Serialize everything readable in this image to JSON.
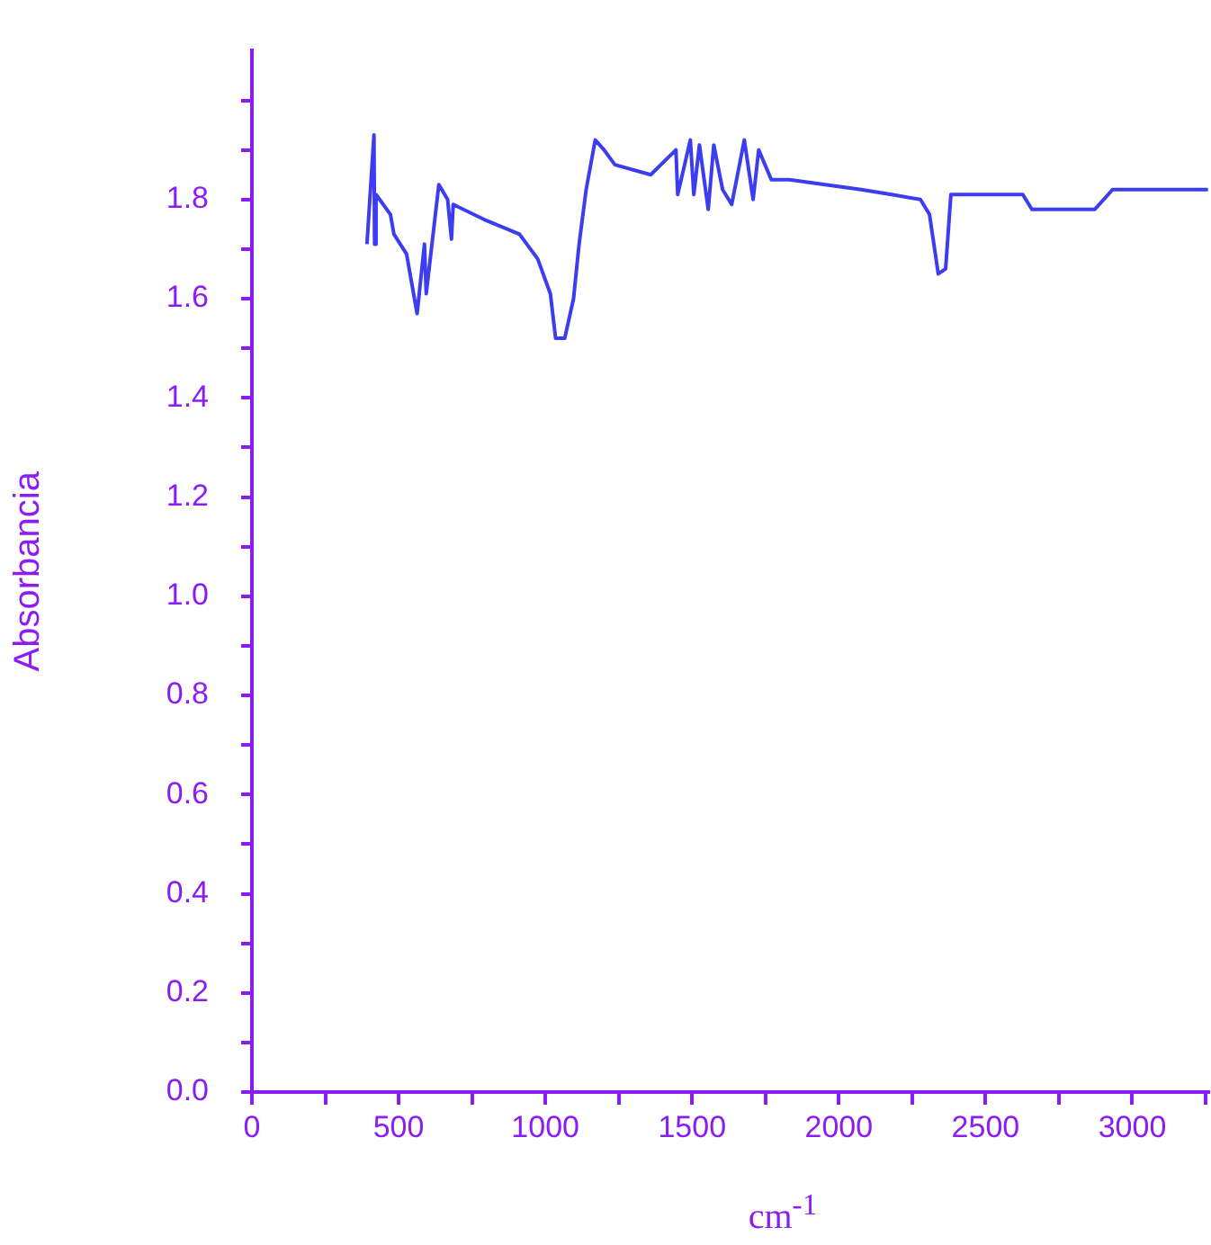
{
  "chart_data": {
    "type": "line",
    "xlabel": "cm$^{-1}$",
    "ylabel": "Absorbancia",
    "x": [
      392,
      416,
      418,
      423,
      472,
      484,
      527,
      563,
      588,
      594,
      637,
      667,
      680,
      686,
      790,
      912,
      974,
      1017,
      1035,
      1066,
      1096,
      1115,
      1139,
      1170,
      1200,
      1237,
      1359,
      1445,
      1451,
      1494,
      1506,
      1525,
      1555,
      1574,
      1604,
      1635,
      1678,
      1708,
      1727,
      1770,
      1831,
      2076,
      2180,
      2278,
      2309,
      2339,
      2364,
      2382,
      2443,
      2627,
      2658,
      2872,
      2933,
      3258
    ],
    "series": [
      {
        "color": "#3c3cf0",
        "values": [
          1.71,
          1.93,
          1.71,
          1.81,
          1.77,
          1.73,
          1.69,
          1.57,
          1.71,
          1.61,
          1.83,
          1.8,
          1.72,
          1.79,
          1.76,
          1.73,
          1.68,
          1.61,
          1.52,
          1.52,
          1.6,
          1.71,
          1.82,
          1.92,
          1.9,
          1.87,
          1.85,
          1.9,
          1.81,
          1.92,
          1.81,
          1.91,
          1.78,
          1.91,
          1.82,
          1.79,
          1.92,
          1.8,
          1.9,
          1.84,
          1.84,
          1.82,
          1.81,
          1.8,
          1.77,
          1.65,
          1.66,
          1.81,
          1.81,
          1.81,
          1.78,
          1.78,
          1.82,
          1.82
        ]
      }
    ],
    "xlim": [
      0,
      3260
    ],
    "xticks": [
      0,
      {
        "value": 250,
        "label": null
      },
      500,
      {
        "value": 750,
        "label": null
      },
      1000,
      {
        "value": 1250,
        "label": null
      },
      1500,
      {
        "value": 1750,
        "label": null
      },
      2000,
      {
        "value": 2250,
        "label": null
      },
      2500,
      {
        "value": 2750,
        "label": null
      },
      3000,
      {
        "value": 3250,
        "label": null
      }
    ],
    "ylim": [
      0,
      2.1
    ],
    "yticks": [
      {
        "value": 0,
        "label": "0.0"
      },
      {
        "value": 0.1,
        "label": null
      },
      {
        "value": 0.2,
        "label": "0.2"
      },
      {
        "value": 0.3,
        "label": null
      },
      {
        "value": 0.4,
        "label": "0.4"
      },
      {
        "value": 0.5,
        "label": null
      },
      {
        "value": 0.6,
        "label": "0.6"
      },
      {
        "value": 0.7,
        "label": null
      },
      {
        "value": 0.8,
        "label": "0.8"
      },
      {
        "value": 0.9,
        "label": null
      },
      {
        "value": 1,
        "label": "1.0"
      },
      {
        "value": 1.1,
        "label": null
      },
      {
        "value": 1.2,
        "label": "1.2"
      },
      {
        "value": 1.3,
        "label": null
      },
      {
        "value": 1.4,
        "label": "1.4"
      },
      {
        "value": 1.5,
        "label": null
      },
      {
        "value": 1.6,
        "label": "1.6"
      },
      {
        "value": 1.7,
        "label": null
      },
      {
        "value": 1.8,
        "label": "1.8"
      },
      {
        "value": 1.9,
        "label": null
      },
      {
        "value": 2,
        "label": null
      }
    ],
    "grid": false,
    "legend": false,
    "marker": "none",
    "line_style": "solid"
  }
}
